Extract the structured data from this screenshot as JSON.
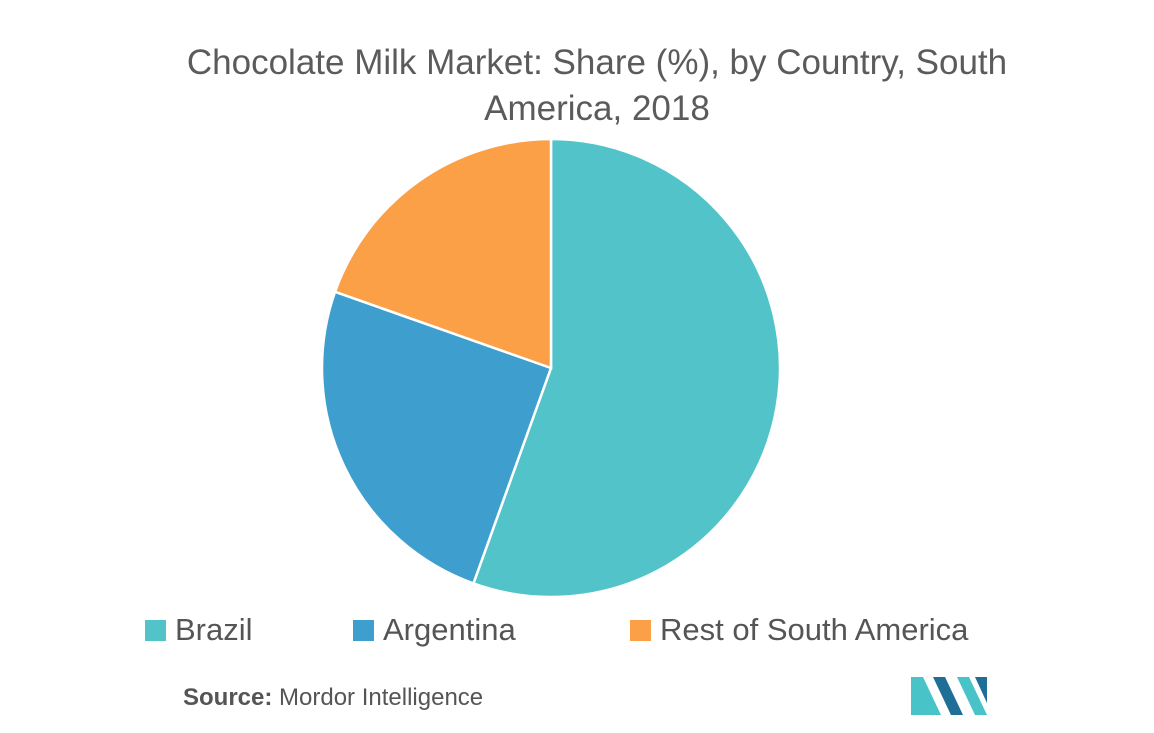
{
  "chart_data": {
    "type": "pie",
    "title_lines": [
      "Chocolate Milk Market: Share (%), by Country, South",
      "America, 2018"
    ],
    "slices": [
      {
        "label": "Brazil",
        "value": 55.5,
        "color": "#52c4c9"
      },
      {
        "label": "Argentina",
        "value": 24.9,
        "color": "#3e9fcf"
      },
      {
        "label": "Rest of South America",
        "value": 19.6,
        "color": "#fba046"
      }
    ],
    "legend_position": "bottom"
  },
  "source": {
    "label": "Source:",
    "text": "Mordor Intelligence"
  },
  "colors": {
    "logo_dark": "#1f6e96",
    "logo_light": "#48c3c8"
  }
}
